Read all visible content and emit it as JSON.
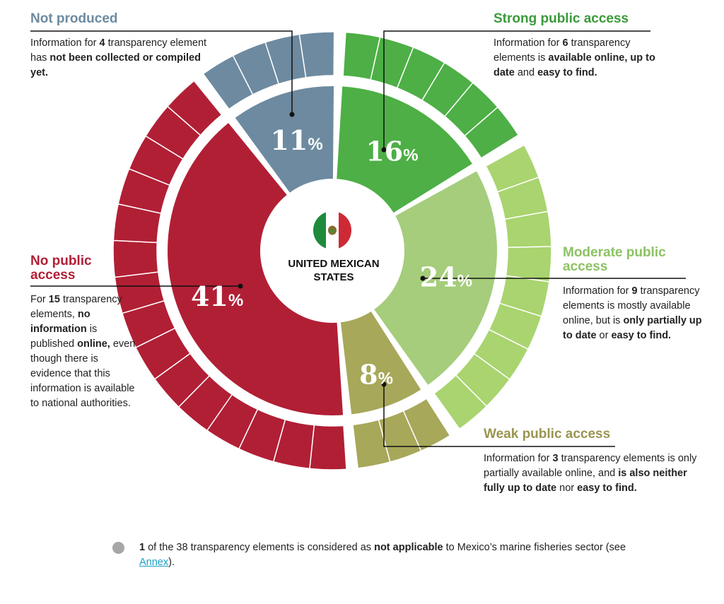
{
  "chart_data": {
    "type": "pie",
    "center_label": [
      "UNITED MEXICAN",
      "STATES"
    ],
    "categories": [
      {
        "key": "strong",
        "title": "Strong public access",
        "percent": 16,
        "elements": 6,
        "color_inner": "#4daf45",
        "color_outer": "#4daf45",
        "text_color": "#3a9a3a",
        "desc_parts": [
          [
            "Information for ",
            false
          ],
          [
            "6",
            true
          ],
          [
            " transparency elements is ",
            false
          ],
          [
            "available online, up to date",
            true
          ],
          [
            " and ",
            false
          ],
          [
            "easy to find.",
            true
          ]
        ]
      },
      {
        "key": "moderate",
        "title": "Moderate public access",
        "percent": 24,
        "elements": 9,
        "color_inner": "#a5cd7b",
        "color_outer": "#a9d46f",
        "text_color": "#8cc263",
        "desc_parts": [
          [
            "Information for ",
            false
          ],
          [
            "9",
            true
          ],
          [
            " transparency elements is mostly available online, but is ",
            false
          ],
          [
            "only partially up to date",
            true
          ],
          [
            " or ",
            false
          ],
          [
            "easy to find.",
            true
          ]
        ]
      },
      {
        "key": "weak",
        "title": "Weak public access",
        "percent": 8,
        "elements": 3,
        "color_inner": "#a7a85a",
        "color_outer": "#a7a85a",
        "text_color": "#9a9550",
        "desc_parts": [
          [
            "Information for ",
            false
          ],
          [
            "3",
            true
          ],
          [
            " transparency elements is only partially available online, and ",
            false
          ],
          [
            "is also neither fully up to date",
            true
          ],
          [
            " nor ",
            false
          ],
          [
            "easy to find.",
            true
          ]
        ]
      },
      {
        "key": "none",
        "title": "No public access",
        "percent": 41,
        "elements": 15,
        "color_inner": "#b11f35",
        "color_outer": "#b11f35",
        "text_color": "#b11f35",
        "desc_parts": [
          [
            "For ",
            false
          ],
          [
            "15",
            true
          ],
          [
            " transparency elements, ",
            false
          ],
          [
            "no information",
            true
          ],
          [
            " is published ",
            false
          ],
          [
            "online,",
            true
          ],
          [
            " even though there is evidence that this information is available to national authorities.",
            false
          ]
        ]
      },
      {
        "key": "not_produced",
        "title": "Not produced",
        "percent": 11,
        "elements": 4,
        "color_inner": "#6d8aa0",
        "color_outer": "#6d8aa0",
        "text_color": "#6d8aa0",
        "desc_parts": [
          [
            "Information for ",
            false
          ],
          [
            "4",
            true
          ],
          [
            " transparency element has ",
            false
          ],
          [
            "not been collected or compiled yet.",
            true
          ]
        ]
      }
    ]
  },
  "note": {
    "parts": [
      [
        "1",
        true
      ],
      [
        " of the 38 transparency elements is considered as ",
        false
      ],
      [
        "not applicable",
        true
      ],
      [
        " to Mexico’s marine fisheries sector (see ",
        false
      ]
    ],
    "link_text": "Annex",
    "after_link": ")."
  },
  "icons": {
    "flag": "mexico-flag-icon",
    "note_dot": "grey-dot-icon"
  }
}
